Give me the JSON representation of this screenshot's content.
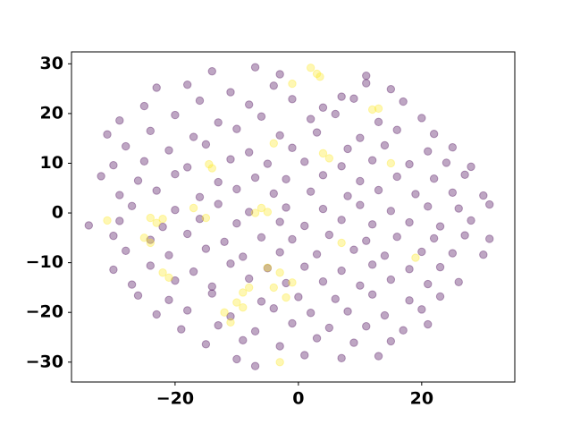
{
  "chart_data": {
    "type": "scatter",
    "xlim": [
      -36.8,
      35.1
    ],
    "ylim": [
      -34.0,
      32.4
    ],
    "xticks": [
      {
        "value": -20,
        "label": "−20"
      },
      0,
      20
    ],
    "yticks": [
      {
        "value": -30,
        "label": "−30"
      },
      {
        "value": -20,
        "label": "−20"
      },
      {
        "value": -10,
        "label": "−10"
      },
      0,
      10,
      20,
      30
    ],
    "grid": false,
    "series": [
      {
        "color": "#440154",
        "x": [
          -14,
          -7,
          11,
          -3,
          -23,
          -18,
          -11,
          -4,
          7,
          15,
          11,
          -25,
          -16,
          -8,
          -1,
          4,
          9,
          17,
          -29,
          -20,
          -13,
          -6,
          2,
          6,
          13,
          20,
          -31,
          -24,
          -17,
          -10,
          -3,
          3,
          10,
          16,
          22,
          -28,
          -21,
          -15,
          -8,
          -1,
          8,
          14,
          21,
          25,
          -30,
          -25,
          -18,
          -11,
          -5,
          1,
          7,
          12,
          18,
          24,
          28,
          -32,
          -26,
          -20,
          -13,
          -7,
          -2,
          4,
          10,
          16,
          22,
          27,
          -29,
          -23,
          -16,
          -10,
          -4,
          2,
          8,
          13,
          19,
          25,
          30,
          -27,
          -20,
          -13,
          -8,
          -2,
          4,
          10,
          15,
          21,
          26,
          31,
          -34,
          -29,
          -22,
          -16,
          -10,
          -3,
          1,
          7,
          12,
          18,
          23,
          28,
          -30,
          -24,
          -18,
          -12,
          -6,
          -1,
          5,
          11,
          16,
          22,
          27,
          31,
          -28,
          -21,
          -15,
          -9,
          -3,
          3,
          9,
          14,
          20,
          25,
          30,
          -30,
          -24,
          -17,
          -11,
          -5,
          1,
          7,
          12,
          18,
          23,
          -27,
          -20,
          -14,
          -8,
          -2,
          4,
          10,
          15,
          21,
          26,
          -26,
          -21,
          -14,
          -6,
          0,
          6,
          12,
          18,
          23,
          -23,
          -18,
          -11,
          -4,
          2,
          8,
          14,
          20,
          -19,
          -13,
          -7,
          -1,
          5,
          11,
          17,
          21,
          -15,
          -9,
          -3,
          3,
          9,
          15,
          -10,
          1,
          7,
          13,
          -7
        ],
        "values": [
          28.5,
          29.3,
          27.6,
          27.9,
          25.2,
          25.8,
          24.3,
          25.6,
          23.4,
          24.9,
          26.1,
          21.5,
          22.6,
          21.8,
          22.9,
          21.2,
          23.0,
          22.4,
          18.6,
          19.7,
          18.2,
          19.4,
          18.9,
          19.9,
          18.3,
          19.1,
          15.8,
          16.5,
          15.3,
          16.9,
          15.6,
          16.2,
          15.1,
          16.7,
          15.9,
          13.4,
          12.6,
          13.8,
          12.2,
          13.1,
          12.9,
          13.6,
          12.4,
          13.2,
          9.6,
          10.4,
          9.2,
          10.8,
          9.9,
          10.3,
          9.4,
          10.6,
          9.8,
          10.1,
          9.3,
          7.4,
          6.5,
          7.8,
          6.2,
          7.1,
          6.8,
          7.6,
          6.4,
          7.3,
          6.9,
          7.7,
          3.6,
          4.5,
          3.2,
          4.8,
          3.9,
          4.3,
          3.4,
          4.6,
          3.8,
          4.1,
          3.5,
          1.4,
          0.6,
          1.8,
          0.2,
          1.1,
          0.8,
          1.6,
          0.4,
          1.3,
          0.9,
          1.7,
          -2.5,
          -1.6,
          -2.8,
          -1.2,
          -2.1,
          -1.8,
          -2.6,
          -1.4,
          -2.3,
          -1.9,
          -2.7,
          -1.5,
          -4.6,
          -5.4,
          -4.2,
          -5.8,
          -4.9,
          -5.3,
          -4.4,
          -5.6,
          -4.8,
          -5.1,
          -4.5,
          -5.2,
          -7.6,
          -8.5,
          -7.2,
          -8.8,
          -7.9,
          -8.3,
          -7.4,
          -8.6,
          -7.8,
          -8.1,
          -8.4,
          -11.4,
          -10.6,
          -11.8,
          -10.2,
          -11.1,
          -10.8,
          -11.6,
          -10.4,
          -11.3,
          -10.9,
          -14.4,
          -13.6,
          -14.8,
          -13.2,
          -14.1,
          -13.8,
          -14.6,
          -13.4,
          -14.3,
          -13.9,
          -16.6,
          -17.5,
          -16.2,
          -17.8,
          -16.9,
          -17.3,
          -16.4,
          -17.6,
          -16.8,
          -20.4,
          -19.6,
          -20.8,
          -19.2,
          -20.1,
          -19.8,
          -20.6,
          -19.4,
          -23.4,
          -22.6,
          -23.8,
          -22.2,
          -23.1,
          -22.8,
          -23.6,
          -22.4,
          -26.4,
          -25.6,
          -26.8,
          -25.2,
          -26.1,
          -25.8,
          -29.4,
          -28.6,
          -29.2,
          -28.8,
          -30.8
        ]
      },
      {
        "color": "#fde725",
        "x": [
          2,
          3,
          3.5,
          -1,
          13,
          12,
          -4,
          5,
          4,
          -14,
          -14.5,
          15,
          -31,
          -24,
          -23,
          -22,
          -17,
          -15,
          -7,
          -6,
          -5,
          -25,
          -24,
          -22,
          -21,
          -5,
          -3,
          7,
          19,
          -8,
          -9,
          -10,
          -9,
          -4,
          -2,
          -1,
          -3,
          -12,
          -11
        ],
        "values": [
          29.2,
          28,
          27.4,
          26,
          21,
          20.8,
          14,
          11,
          12,
          9,
          9.8,
          10,
          -1.5,
          -1,
          -2,
          -1.2,
          1,
          -1,
          0,
          1,
          0.2,
          -5,
          -6,
          -12,
          -13,
          -11,
          -12,
          -6,
          -9,
          -15,
          -16,
          -18,
          -19,
          -15,
          -17,
          -14,
          -30,
          -20,
          -22
        ]
      }
    ]
  }
}
